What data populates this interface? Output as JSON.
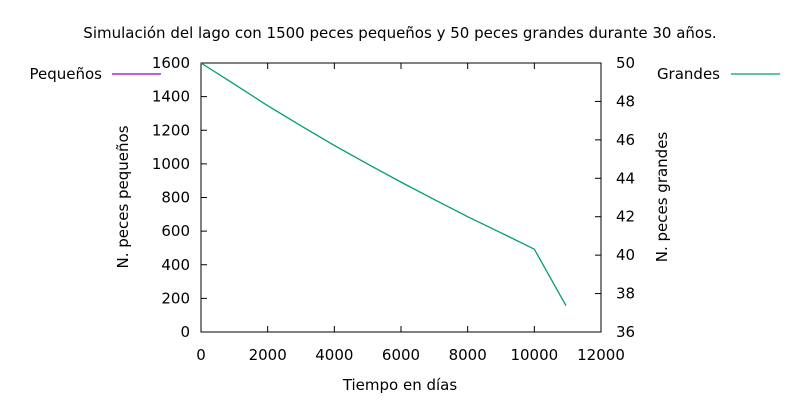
{
  "chart_data": {
    "type": "line",
    "title": "Simulación del lago con 1500 peces pequeños y 50 peces grandes durante 30 años.",
    "xlabel": "Tiempo en días",
    "ylabel_left": "N. peces pequeños",
    "ylabel_right": "N. peces grandes",
    "xlim": [
      0,
      12000
    ],
    "ylim_left": [
      0,
      1600
    ],
    "ylim_right": [
      36,
      50
    ],
    "x_ticks": [
      0,
      2000,
      4000,
      6000,
      8000,
      10000,
      12000
    ],
    "y_left_ticks": [
      0,
      200,
      400,
      600,
      800,
      1000,
      1200,
      1400,
      1600
    ],
    "y_right_ticks": [
      36,
      38,
      40,
      42,
      44,
      46,
      48,
      50
    ],
    "grid": false,
    "series": [
      {
        "name": "Pequeños",
        "axis": "left",
        "color": "#9400d3",
        "x": [],
        "y": []
      },
      {
        "name": "Grandes",
        "axis": "right",
        "color": "#009e73",
        "x": [
          0,
          1000,
          2000,
          3000,
          4000,
          5000,
          6000,
          7000,
          8000,
          9000,
          10000,
          10950
        ],
        "y": [
          50.0,
          48.9,
          47.78,
          46.73,
          45.71,
          44.74,
          43.8,
          42.89,
          42.0,
          41.16,
          40.31,
          37.37
        ]
      }
    ],
    "legend": [
      {
        "label": "Pequeños",
        "position": "top-left",
        "color": "#9400d3"
      },
      {
        "label": "Grandes",
        "position": "top-right",
        "color": "#009e73"
      }
    ]
  }
}
